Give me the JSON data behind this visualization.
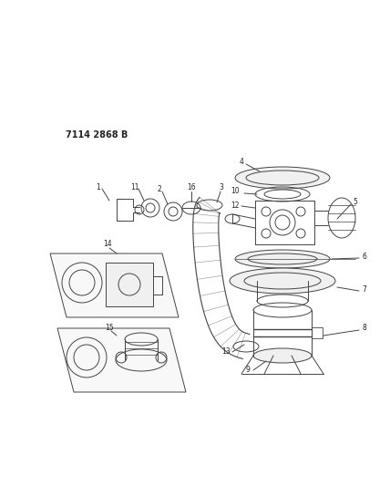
{
  "title": "7114 2868 B",
  "bg_color": "#ffffff",
  "line_color": "#444444",
  "label_color": "#222222",
  "lw": 0.7,
  "label_fs": 5.5
}
